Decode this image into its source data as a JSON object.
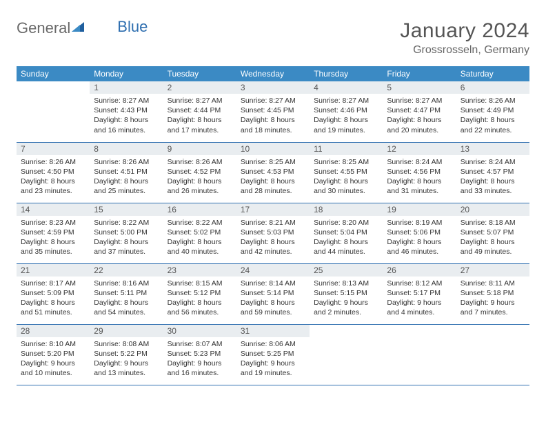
{
  "brand": {
    "part1": "General",
    "part2": "Blue"
  },
  "title": "January 2024",
  "location": "Grossrosseln, Germany",
  "colors": {
    "header_bg": "#3b8ac4",
    "header_text": "#ffffff",
    "border": "#2f6fb0",
    "daynum_bg": "#e9edf0",
    "text": "#333333",
    "title_color": "#555555",
    "brand_accent": "#2f6fb0"
  },
  "weekdays": [
    "Sunday",
    "Monday",
    "Tuesday",
    "Wednesday",
    "Thursday",
    "Friday",
    "Saturday"
  ],
  "start_weekday": 1,
  "days": [
    {
      "n": 1,
      "sunrise": "8:27 AM",
      "sunset": "4:43 PM",
      "daylight": "8 hours and 16 minutes."
    },
    {
      "n": 2,
      "sunrise": "8:27 AM",
      "sunset": "4:44 PM",
      "daylight": "8 hours and 17 minutes."
    },
    {
      "n": 3,
      "sunrise": "8:27 AM",
      "sunset": "4:45 PM",
      "daylight": "8 hours and 18 minutes."
    },
    {
      "n": 4,
      "sunrise": "8:27 AM",
      "sunset": "4:46 PM",
      "daylight": "8 hours and 19 minutes."
    },
    {
      "n": 5,
      "sunrise": "8:27 AM",
      "sunset": "4:47 PM",
      "daylight": "8 hours and 20 minutes."
    },
    {
      "n": 6,
      "sunrise": "8:26 AM",
      "sunset": "4:49 PM",
      "daylight": "8 hours and 22 minutes."
    },
    {
      "n": 7,
      "sunrise": "8:26 AM",
      "sunset": "4:50 PM",
      "daylight": "8 hours and 23 minutes."
    },
    {
      "n": 8,
      "sunrise": "8:26 AM",
      "sunset": "4:51 PM",
      "daylight": "8 hours and 25 minutes."
    },
    {
      "n": 9,
      "sunrise": "8:26 AM",
      "sunset": "4:52 PM",
      "daylight": "8 hours and 26 minutes."
    },
    {
      "n": 10,
      "sunrise": "8:25 AM",
      "sunset": "4:53 PM",
      "daylight": "8 hours and 28 minutes."
    },
    {
      "n": 11,
      "sunrise": "8:25 AM",
      "sunset": "4:55 PM",
      "daylight": "8 hours and 30 minutes."
    },
    {
      "n": 12,
      "sunrise": "8:24 AM",
      "sunset": "4:56 PM",
      "daylight": "8 hours and 31 minutes."
    },
    {
      "n": 13,
      "sunrise": "8:24 AM",
      "sunset": "4:57 PM",
      "daylight": "8 hours and 33 minutes."
    },
    {
      "n": 14,
      "sunrise": "8:23 AM",
      "sunset": "4:59 PM",
      "daylight": "8 hours and 35 minutes."
    },
    {
      "n": 15,
      "sunrise": "8:22 AM",
      "sunset": "5:00 PM",
      "daylight": "8 hours and 37 minutes."
    },
    {
      "n": 16,
      "sunrise": "8:22 AM",
      "sunset": "5:02 PM",
      "daylight": "8 hours and 40 minutes."
    },
    {
      "n": 17,
      "sunrise": "8:21 AM",
      "sunset": "5:03 PM",
      "daylight": "8 hours and 42 minutes."
    },
    {
      "n": 18,
      "sunrise": "8:20 AM",
      "sunset": "5:04 PM",
      "daylight": "8 hours and 44 minutes."
    },
    {
      "n": 19,
      "sunrise": "8:19 AM",
      "sunset": "5:06 PM",
      "daylight": "8 hours and 46 minutes."
    },
    {
      "n": 20,
      "sunrise": "8:18 AM",
      "sunset": "5:07 PM",
      "daylight": "8 hours and 49 minutes."
    },
    {
      "n": 21,
      "sunrise": "8:17 AM",
      "sunset": "5:09 PM",
      "daylight": "8 hours and 51 minutes."
    },
    {
      "n": 22,
      "sunrise": "8:16 AM",
      "sunset": "5:11 PM",
      "daylight": "8 hours and 54 minutes."
    },
    {
      "n": 23,
      "sunrise": "8:15 AM",
      "sunset": "5:12 PM",
      "daylight": "8 hours and 56 minutes."
    },
    {
      "n": 24,
      "sunrise": "8:14 AM",
      "sunset": "5:14 PM",
      "daylight": "8 hours and 59 minutes."
    },
    {
      "n": 25,
      "sunrise": "8:13 AM",
      "sunset": "5:15 PM",
      "daylight": "9 hours and 2 minutes."
    },
    {
      "n": 26,
      "sunrise": "8:12 AM",
      "sunset": "5:17 PM",
      "daylight": "9 hours and 4 minutes."
    },
    {
      "n": 27,
      "sunrise": "8:11 AM",
      "sunset": "5:18 PM",
      "daylight": "9 hours and 7 minutes."
    },
    {
      "n": 28,
      "sunrise": "8:10 AM",
      "sunset": "5:20 PM",
      "daylight": "9 hours and 10 minutes."
    },
    {
      "n": 29,
      "sunrise": "8:08 AM",
      "sunset": "5:22 PM",
      "daylight": "9 hours and 13 minutes."
    },
    {
      "n": 30,
      "sunrise": "8:07 AM",
      "sunset": "5:23 PM",
      "daylight": "9 hours and 16 minutes."
    },
    {
      "n": 31,
      "sunrise": "8:06 AM",
      "sunset": "5:25 PM",
      "daylight": "9 hours and 19 minutes."
    }
  ],
  "labels": {
    "sunrise": "Sunrise:",
    "sunset": "Sunset:",
    "daylight": "Daylight:"
  },
  "layout": {
    "cell_fontsize": 10.5,
    "header_fontsize": 12,
    "title_fontsize": 30
  }
}
